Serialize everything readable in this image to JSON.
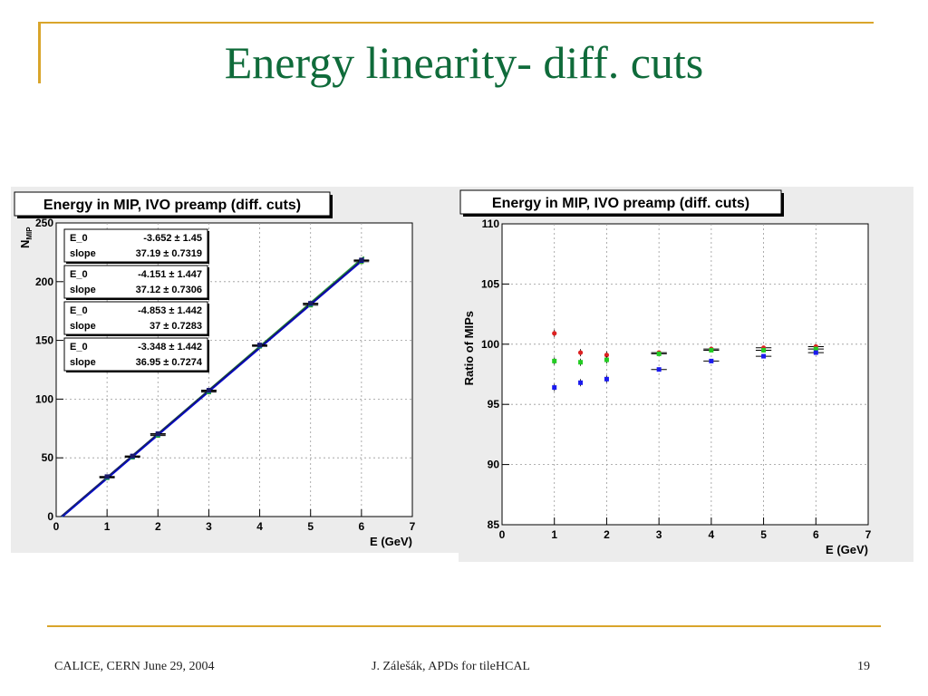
{
  "slide": {
    "title": "Energy linearity- diff. cuts",
    "footer_left": "CALICE, CERN June 29, 2004",
    "footer_center": "J. Zálešák, APDs for tileHCAL",
    "footer_right": "19",
    "accent_color": "#d9a52b",
    "title_color": "#0f6b3a"
  },
  "chart_data": [
    {
      "type": "scatter",
      "title": "Energy in MIP, IVO preamp (diff. cuts)",
      "xlabel": "E (GeV)",
      "ylabel": "N_MIP",
      "ylabel_main": "N",
      "ylabel_sub": "MIP",
      "xlim": [
        0,
        7
      ],
      "ylim": [
        0,
        250
      ],
      "xticks": [
        0,
        1,
        2,
        3,
        4,
        5,
        6,
        7
      ],
      "yticks": [
        0,
        50,
        100,
        150,
        200,
        250
      ],
      "grid": true,
      "series": [
        {
          "color": "#2ca02c",
          "points": [
            [
              1,
              33
            ],
            [
              1.5,
              50.5
            ],
            [
              2,
              69
            ],
            [
              3,
              106
            ],
            [
              4,
              145
            ],
            [
              5,
              180
            ],
            [
              6,
              217
            ]
          ],
          "fit": {
            "E_0": -3.652,
            "slope": 37.19
          }
        },
        {
          "color": "#00a0a0",
          "points": [
            [
              1,
              33.5
            ],
            [
              1.5,
              51
            ],
            [
              2,
              70
            ],
            [
              3,
              107
            ],
            [
              4,
              145.5
            ],
            [
              5,
              181
            ],
            [
              6,
              218
            ]
          ],
          "fit": {
            "E_0": -4.151,
            "slope": 37.12
          }
        },
        {
          "color": "#0000cc",
          "points": [
            [
              1,
              34
            ],
            [
              1.5,
              51.5
            ],
            [
              2,
              70.5
            ],
            [
              3,
              107.5
            ],
            [
              4,
              146
            ],
            [
              5,
              181.5
            ],
            [
              6,
              218
            ]
          ],
          "fit": {
            "E_0": -4.853,
            "slope": 37.0
          }
        },
        {
          "color": "#1a1a66",
          "points": [
            [
              1,
              34
            ],
            [
              1.5,
              51.5
            ],
            [
              2,
              70.5
            ],
            [
              3,
              107.5
            ],
            [
              4,
              146
            ],
            [
              5,
              181.5
            ],
            [
              6,
              218.5
            ]
          ],
          "fit": {
            "E_0": -3.348,
            "slope": 36.95
          }
        }
      ],
      "stat_boxes": [
        {
          "r1_label": "E_0",
          "r1_value": "-3.652 ±  1.45",
          "r2_label": "slope",
          "r2_value": "37.19 ± 0.7319"
        },
        {
          "r1_label": "E_0",
          "r1_value": "-4.151 ± 1.447",
          "r2_label": "slope",
          "r2_value": "37.12 ± 0.7306"
        },
        {
          "r1_label": "E_0",
          "r1_value": "-4.853 ± 1.442",
          "r2_label": "slope",
          "r2_value": "37 ± 0.7283"
        },
        {
          "r1_label": "E_0",
          "r1_value": "-3.348 ± 1.442",
          "r2_label": "slope",
          "r2_value": "36.95 ± 0.7274"
        }
      ]
    },
    {
      "type": "scatter",
      "title": "Energy in MIP, IVO preamp (diff. cuts)",
      "xlabel": "E (GeV)",
      "ylabel": "Ratio of MIPs",
      "xlim": [
        0,
        7
      ],
      "ylim": [
        85,
        110
      ],
      "xticks": [
        0,
        1,
        2,
        3,
        4,
        5,
        6,
        7
      ],
      "yticks": [
        85,
        90,
        95,
        100,
        105,
        110
      ],
      "grid": true,
      "series": [
        {
          "color": "#dd2222",
          "marker": "circle",
          "points": [
            [
              1,
              100.9
            ],
            [
              1.5,
              99.3
            ],
            [
              2,
              99.1
            ],
            [
              3,
              99.3
            ],
            [
              4,
              99.6
            ],
            [
              5,
              99.7
            ],
            [
              6,
              99.8
            ]
          ]
        },
        {
          "color": "#22cc22",
          "marker": "square",
          "points": [
            [
              1,
              98.6
            ],
            [
              1.5,
              98.5
            ],
            [
              2,
              98.7
            ],
            [
              3,
              99.2
            ],
            [
              4,
              99.5
            ],
            [
              5,
              99.5
            ],
            [
              6,
              99.6
            ]
          ]
        },
        {
          "color": "#1a1aee",
          "marker": "square",
          "points": [
            [
              1,
              96.4
            ],
            [
              1.5,
              96.8
            ],
            [
              2,
              97.1
            ],
            [
              3,
              97.9
            ],
            [
              4,
              98.6
            ],
            [
              5,
              99.0
            ],
            [
              6,
              99.3
            ]
          ]
        }
      ]
    }
  ]
}
